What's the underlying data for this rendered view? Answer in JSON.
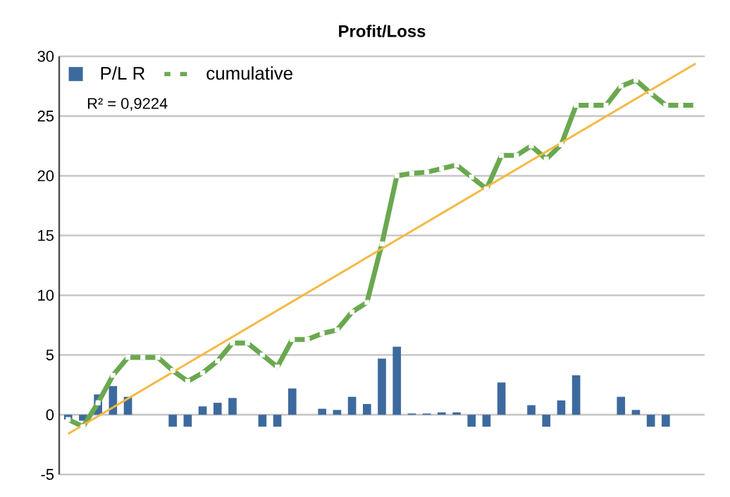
{
  "chart_data": {
    "type": "bar",
    "title": "Profit/Loss",
    "categories": [
      null,
      null,
      null,
      null,
      null,
      null,
      null,
      null,
      null,
      null,
      null,
      null,
      null,
      null,
      null,
      null,
      null,
      null,
      null,
      null,
      null,
      null,
      null,
      null,
      null,
      null,
      null,
      null,
      null,
      null,
      null,
      null,
      null,
      null,
      null,
      null,
      null,
      null,
      null,
      null,
      null,
      null,
      null
    ],
    "series": [
      {
        "name": "P/L R",
        "color": "#3d6a9e",
        "values": [
          -0.4,
          -0.5,
          1.7,
          2.4,
          1.5,
          0,
          0,
          -1.0,
          -1.0,
          0.7,
          1.0,
          1.4,
          0,
          -1.0,
          -1.0,
          2.2,
          0,
          0.5,
          0.4,
          1.5,
          0.9,
          4.7,
          5.7,
          0.1,
          0.1,
          0.2,
          0.2,
          -1.0,
          -1.0,
          2.7,
          0,
          0.8,
          -1.0,
          1.2,
          3.3,
          0,
          0,
          1.5,
          0.4,
          -1.0,
          -1.0,
          0,
          0
        ]
      },
      {
        "name": "cumulative",
        "type": "line",
        "color": "#6aa84f",
        "marker": "square",
        "values": [
          -0.4,
          -1.0,
          1.0,
          3.3,
          4.8,
          4.8,
          4.8,
          3.7,
          2.8,
          3.5,
          4.5,
          6.0,
          6.0,
          5.0,
          4.0,
          6.3,
          6.3,
          6.8,
          7.1,
          8.6,
          9.4,
          14.3,
          20.0,
          20.2,
          20.3,
          20.6,
          20.9,
          19.9,
          18.9,
          21.7,
          21.7,
          22.5,
          21.4,
          22.6,
          25.9,
          25.9,
          25.9,
          27.5,
          28.0,
          26.9,
          25.9,
          25.9,
          25.9
        ]
      },
      {
        "type": "line",
        "color": "#f5b942",
        "values": [
          -1.6,
          null,
          null,
          null,
          null,
          null,
          null,
          null,
          null,
          null,
          null,
          null,
          null,
          null,
          null,
          null,
          null,
          null,
          null,
          null,
          null,
          null,
          null,
          null,
          null,
          null,
          null,
          null,
          null,
          null,
          null,
          null,
          null,
          null,
          null,
          null,
          null,
          null,
          null,
          null,
          null,
          null,
          29.4
        ]
      }
    ],
    "annotations": [
      "R² = 0,9224"
    ],
    "ylim": [
      -5,
      30
    ],
    "yticks": [
      -5,
      0,
      5,
      10,
      15,
      20,
      25,
      30
    ],
    "grid": "y",
    "legend": "top left",
    "tick_labels": "y"
  }
}
